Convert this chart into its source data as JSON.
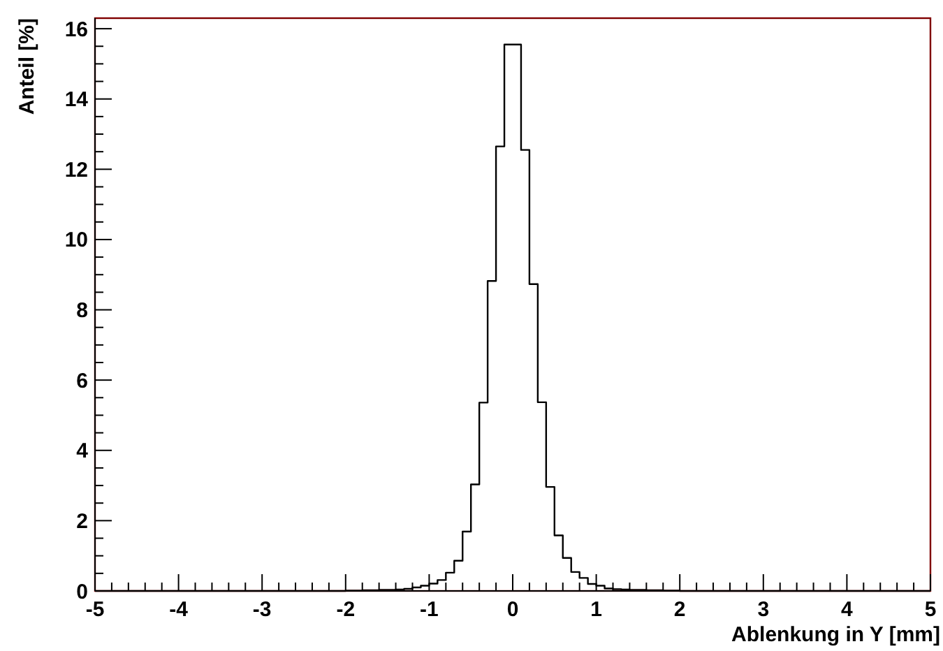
{
  "chart_data": {
    "type": "histogram",
    "xlabel": "Ablenkung in Y [mm]",
    "ylabel": "Anteil [%]",
    "color": "#000000",
    "bins": [
      -5,
      -4.9,
      -4.8,
      -4.7,
      -4.6,
      -4.5,
      -4.4,
      -4.3,
      -4.2,
      -4.1,
      -4,
      -3.9,
      -3.8,
      -3.7,
      -3.6,
      -3.5,
      -3.4,
      -3.3,
      -3.2,
      -3.1,
      -3,
      -2.9,
      -2.8,
      -2.7,
      -2.6,
      -2.5,
      -2.4,
      -2.3,
      -2.2,
      -2.1,
      -2,
      -1.9,
      -1.8,
      -1.7,
      -1.6,
      -1.5,
      -1.4,
      -1.3,
      -1.2,
      -1.1,
      -1,
      -0.9,
      -0.8,
      -0.7,
      -0.6,
      -0.5,
      -0.4,
      -0.3,
      -0.2,
      -0.1,
      0,
      0.1,
      0.2,
      0.3,
      0.4,
      0.5,
      0.6,
      0.7,
      0.8,
      0.9,
      1,
      1.1,
      1.2,
      1.3,
      1.4,
      1.5,
      1.6,
      1.7,
      1.8,
      1.9,
      2,
      2.1,
      2.2,
      2.3,
      2.4,
      2.5,
      2.6,
      2.7,
      2.8,
      2.9,
      3,
      3.1,
      3.2,
      3.3,
      3.4,
      3.5,
      3.6,
      3.7,
      3.8,
      3.9,
      4,
      4.1,
      4.2,
      4.3,
      4.4,
      4.5,
      4.6,
      4.7,
      4.8,
      4.9,
      5
    ],
    "values": [
      0,
      0,
      0,
      0,
      0,
      0,
      0,
      0,
      0,
      0,
      0,
      0,
      0,
      0,
      0,
      0,
      0,
      0,
      0,
      0,
      0,
      0,
      0,
      0,
      0,
      0,
      0,
      0,
      0,
      0,
      0.01,
      0.01,
      0.02,
      0.02,
      0.03,
      0.03,
      0.04,
      0.06,
      0.1,
      0.15,
      0.21,
      0.31,
      0.52,
      0.86,
      1.69,
      3.03,
      5.36,
      8.82,
      12.65,
      15.55,
      15.55,
      12.55,
      8.73,
      5.37,
      2.96,
      1.58,
      0.94,
      0.54,
      0.37,
      0.2,
      0.15,
      0.07,
      0.05,
      0.04,
      0.03,
      0.03,
      0.02,
      0.02,
      0.01,
      0.01,
      0,
      0,
      0,
      0,
      0,
      0,
      0,
      0,
      0,
      0,
      0,
      0,
      0,
      0,
      0,
      0,
      0,
      0,
      0,
      0,
      0,
      0,
      0,
      0,
      0,
      0,
      0,
      0,
      0,
      0
    ],
    "xlim": [
      -5,
      5
    ],
    "xticks": [
      -5,
      {
        "value": -4.8,
        "label": null
      },
      {
        "value": -4.6,
        "label": null
      },
      {
        "value": -4.4,
        "label": null
      },
      {
        "value": -4.2,
        "label": null
      },
      -4,
      {
        "value": -3.8,
        "label": null
      },
      {
        "value": -3.6,
        "label": null
      },
      {
        "value": -3.4,
        "label": null
      },
      {
        "value": -3.2,
        "label": null
      },
      -3,
      {
        "value": -2.8,
        "label": null
      },
      {
        "value": -2.6,
        "label": null
      },
      {
        "value": -2.4,
        "label": null
      },
      {
        "value": -2.2,
        "label": null
      },
      -2,
      {
        "value": -1.8,
        "label": null
      },
      {
        "value": -1.6,
        "label": null
      },
      {
        "value": -1.4,
        "label": null
      },
      {
        "value": -1.2,
        "label": null
      },
      -1,
      {
        "value": -0.8,
        "label": null
      },
      {
        "value": -0.6,
        "label": null
      },
      {
        "value": -0.4,
        "label": null
      },
      {
        "value": -0.2,
        "label": null
      },
      0,
      {
        "value": 0.2,
        "label": null
      },
      {
        "value": 0.4,
        "label": null
      },
      {
        "value": 0.6,
        "label": null
      },
      {
        "value": 0.8,
        "label": null
      },
      1,
      {
        "value": 1.2,
        "label": null
      },
      {
        "value": 1.4,
        "label": null
      },
      {
        "value": 1.6,
        "label": null
      },
      {
        "value": 1.8,
        "label": null
      },
      2,
      {
        "value": 2.2,
        "label": null
      },
      {
        "value": 2.4,
        "label": null
      },
      {
        "value": 2.6,
        "label": null
      },
      {
        "value": 2.8,
        "label": null
      },
      3,
      {
        "value": 3.2,
        "label": null
      },
      {
        "value": 3.4,
        "label": null
      },
      {
        "value": 3.6,
        "label": null
      },
      {
        "value": 3.8,
        "label": null
      },
      4,
      {
        "value": 4.2,
        "label": null
      },
      {
        "value": 4.4,
        "label": null
      },
      {
        "value": 4.6,
        "label": null
      },
      {
        "value": 4.8,
        "label": null
      },
      5
    ],
    "ylim": [
      0,
      16.3
    ],
    "yticks": [
      0,
      {
        "value": 0.5,
        "label": null
      },
      {
        "value": 1,
        "label": null
      },
      {
        "value": 1.5,
        "label": null
      },
      2,
      {
        "value": 2.5,
        "label": null
      },
      {
        "value": 3,
        "label": null
      },
      {
        "value": 3.5,
        "label": null
      },
      4,
      {
        "value": 4.5,
        "label": null
      },
      {
        "value": 5,
        "label": null
      },
      {
        "value": 5.5,
        "label": null
      },
      6,
      {
        "value": 6.5,
        "label": null
      },
      {
        "value": 7,
        "label": null
      },
      {
        "value": 7.5,
        "label": null
      },
      8,
      {
        "value": 8.5,
        "label": null
      },
      {
        "value": 9,
        "label": null
      },
      {
        "value": 9.5,
        "label": null
      },
      10,
      {
        "value": 10.5,
        "label": null
      },
      {
        "value": 11,
        "label": null
      },
      {
        "value": 11.5,
        "label": null
      },
      12,
      {
        "value": 12.5,
        "label": null
      },
      {
        "value": 13,
        "label": null
      },
      {
        "value": 13.5,
        "label": null
      },
      14,
      {
        "value": 14.5,
        "label": null
      },
      {
        "value": 15,
        "label": null
      },
      {
        "value": 15.5,
        "label": null
      },
      16
    ]
  }
}
